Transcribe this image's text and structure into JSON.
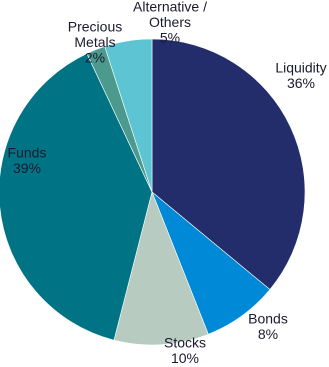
{
  "chart_data": {
    "type": "pie",
    "title": "",
    "start_angle_deg": 0,
    "direction": "clockwise",
    "legend": "none",
    "slices": [
      {
        "name_lines": [
          "Liquidity"
        ],
        "value": 36,
        "label": "36%",
        "color": "#232d6b"
      },
      {
        "name_lines": [
          "Bonds"
        ],
        "value": 8,
        "label": "8%",
        "color": "#0089d6"
      },
      {
        "name_lines": [
          "Stocks"
        ],
        "value": 10,
        "label": "10%",
        "color": "#b7cbc0"
      },
      {
        "name_lines": [
          "Funds"
        ],
        "value": 39,
        "label": "39%",
        "color": "#007485"
      },
      {
        "name_lines": [
          "Precious",
          "Metals"
        ],
        "value": 2,
        "label": "2%",
        "color": "#4c9a8d"
      },
      {
        "name_lines": [
          "Alternative /",
          "Others"
        ],
        "value": 5,
        "label": "5%",
        "color": "#5dc4d3"
      }
    ]
  }
}
